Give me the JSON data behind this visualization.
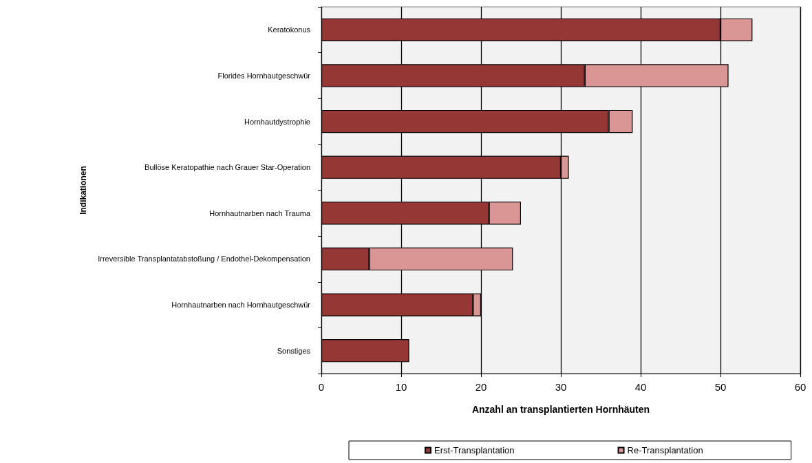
{
  "chart_data": {
    "type": "bar",
    "orientation": "horizontal",
    "stacked": true,
    "categories": [
      "Keratokonus",
      "Florides Hornhautgeschwür",
      "Hornhautdystrophie",
      "Bullöse Keratopathie nach Grauer Star-Operation",
      "Hornhautnarben nach Trauma",
      "Irreversible Transplantatabstoßung / Endothel-Dekompensation",
      "Hornhautnarben nach Hornhautgeschwür",
      "Sonstiges"
    ],
    "series": [
      {
        "name": "Erst-Transplantation",
        "color": "#953735",
        "values": [
          50,
          33,
          36,
          30,
          21,
          6,
          19,
          11
        ]
      },
      {
        "name": "Re-Transplantation",
        "color": "#d99694",
        "values": [
          4,
          18,
          3,
          1,
          4,
          18,
          1,
          0
        ]
      }
    ],
    "xlim": [
      0,
      60
    ],
    "xticks": [
      0,
      10,
      20,
      30,
      40,
      50,
      60
    ],
    "xlabel": "Anzahl an transplantierten Hornhäuten",
    "ylabel": "Indikationen",
    "grid": "x",
    "legend": "bottom"
  }
}
